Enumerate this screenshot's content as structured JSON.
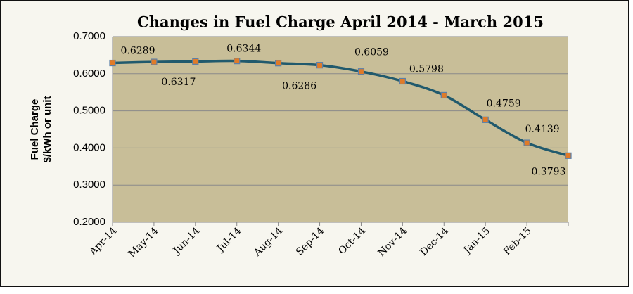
{
  "chart_data": {
    "type": "line",
    "title": "Changes in Fuel Charge April 2014 - March 2015",
    "ylabel": [
      "Fuel Charge",
      "$/kWh or unit"
    ],
    "categories": [
      "Apr-14",
      "May-14",
      "Jun-14",
      "Jul-14",
      "Aug-14",
      "Sep-14",
      "Oct-14",
      "Nov-14",
      "Dec-14",
      "Jan-15",
      "Feb-15",
      null
    ],
    "values": [
      0.6289,
      0.6317,
      0.633,
      0.6344,
      0.6286,
      0.623,
      0.6059,
      0.5798,
      0.542,
      0.4759,
      0.4139,
      0.3793
    ],
    "value_labels": [
      "0.6289",
      "0.6317",
      null,
      "0.6344",
      "0.6286",
      null,
      "0.6059",
      "0.5798",
      null,
      "0.4759",
      "0.4139",
      "0.3793"
    ],
    "color": "#215a6d",
    "marker_color": "#e07b28",
    "ylim": [
      0.2,
      0.7
    ],
    "yticks": [
      {
        "value": 0.2,
        "label": "0.2000"
      },
      {
        "value": 0.3,
        "label": "0.3000"
      },
      {
        "value": 0.4,
        "label": "0.4000"
      },
      {
        "value": 0.5,
        "label": "0.5000"
      },
      {
        "value": 0.6,
        "label": "0.6000"
      },
      {
        "value": 0.7,
        "label": "0.7000"
      }
    ],
    "grid": true
  }
}
